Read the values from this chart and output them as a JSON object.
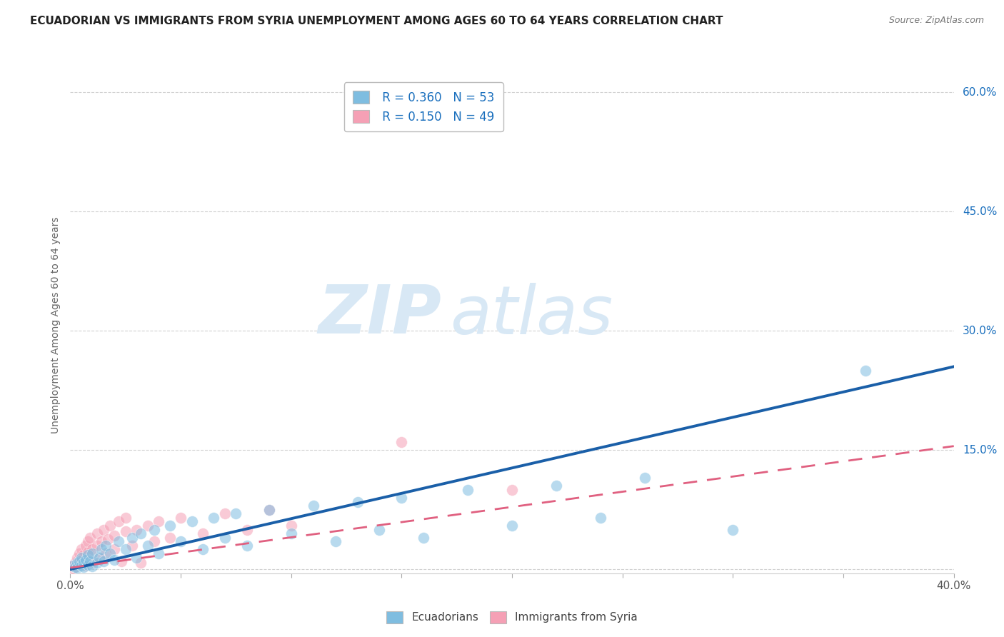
{
  "title": "ECUADORIAN VS IMMIGRANTS FROM SYRIA UNEMPLOYMENT AMONG AGES 60 TO 64 YEARS CORRELATION CHART",
  "source": "Source: ZipAtlas.com",
  "ylabel": "Unemployment Among Ages 60 to 64 years",
  "xlim": [
    0.0,
    0.4
  ],
  "ylim": [
    -0.005,
    0.62
  ],
  "ytick_positions": [
    0.0,
    0.15,
    0.3,
    0.45,
    0.6
  ],
  "yticklabels_right": [
    "",
    "15.0%",
    "30.0%",
    "45.0%",
    "60.0%"
  ],
  "grid_color": "#cccccc",
  "background_color": "#ffffff",
  "watermark_zip": "ZIP",
  "watermark_atlas": "atlas",
  "watermark_color": "#d8e8f5",
  "legend_R1": "R = 0.360",
  "legend_N1": "N = 53",
  "legend_R2": "R = 0.150",
  "legend_N2": "N = 49",
  "blue_color": "#7fbde0",
  "pink_color": "#f5a0b5",
  "blue_line_color": "#1a5fa8",
  "pink_line_color": "#e06080",
  "legend_text_color": "#1a6fbd",
  "blue_scatter": [
    [
      0.001,
      0.005
    ],
    [
      0.002,
      0.003
    ],
    [
      0.003,
      0.008
    ],
    [
      0.003,
      0.002
    ],
    [
      0.004,
      0.01
    ],
    [
      0.005,
      0.005
    ],
    [
      0.005,
      0.015
    ],
    [
      0.006,
      0.003
    ],
    [
      0.006,
      0.008
    ],
    [
      0.007,
      0.012
    ],
    [
      0.008,
      0.006
    ],
    [
      0.008,
      0.018
    ],
    [
      0.009,
      0.01
    ],
    [
      0.01,
      0.004
    ],
    [
      0.01,
      0.02
    ],
    [
      0.012,
      0.008
    ],
    [
      0.013,
      0.015
    ],
    [
      0.014,
      0.025
    ],
    [
      0.015,
      0.01
    ],
    [
      0.016,
      0.03
    ],
    [
      0.018,
      0.02
    ],
    [
      0.02,
      0.012
    ],
    [
      0.022,
      0.035
    ],
    [
      0.025,
      0.025
    ],
    [
      0.028,
      0.04
    ],
    [
      0.03,
      0.015
    ],
    [
      0.032,
      0.045
    ],
    [
      0.035,
      0.03
    ],
    [
      0.038,
      0.05
    ],
    [
      0.04,
      0.02
    ],
    [
      0.045,
      0.055
    ],
    [
      0.05,
      0.035
    ],
    [
      0.055,
      0.06
    ],
    [
      0.06,
      0.025
    ],
    [
      0.065,
      0.065
    ],
    [
      0.07,
      0.04
    ],
    [
      0.075,
      0.07
    ],
    [
      0.08,
      0.03
    ],
    [
      0.09,
      0.075
    ],
    [
      0.1,
      0.045
    ],
    [
      0.11,
      0.08
    ],
    [
      0.12,
      0.035
    ],
    [
      0.13,
      0.085
    ],
    [
      0.14,
      0.05
    ],
    [
      0.15,
      0.09
    ],
    [
      0.16,
      0.04
    ],
    [
      0.18,
      0.1
    ],
    [
      0.2,
      0.055
    ],
    [
      0.22,
      0.105
    ],
    [
      0.24,
      0.065
    ],
    [
      0.26,
      0.115
    ],
    [
      0.3,
      0.05
    ],
    [
      0.36,
      0.25
    ]
  ],
  "pink_scatter": [
    [
      0.001,
      0.001
    ],
    [
      0.001,
      0.005
    ],
    [
      0.002,
      0.008
    ],
    [
      0.002,
      0.003
    ],
    [
      0.003,
      0.01
    ],
    [
      0.003,
      0.015
    ],
    [
      0.004,
      0.006
    ],
    [
      0.004,
      0.02
    ],
    [
      0.005,
      0.012
    ],
    [
      0.005,
      0.025
    ],
    [
      0.006,
      0.008
    ],
    [
      0.006,
      0.018
    ],
    [
      0.007,
      0.03
    ],
    [
      0.007,
      0.005
    ],
    [
      0.008,
      0.022
    ],
    [
      0.008,
      0.035
    ],
    [
      0.009,
      0.012
    ],
    [
      0.009,
      0.04
    ],
    [
      0.01,
      0.025
    ],
    [
      0.01,
      0.008
    ],
    [
      0.012,
      0.03
    ],
    [
      0.012,
      0.045
    ],
    [
      0.013,
      0.015
    ],
    [
      0.014,
      0.035
    ],
    [
      0.015,
      0.05
    ],
    [
      0.016,
      0.02
    ],
    [
      0.017,
      0.038
    ],
    [
      0.018,
      0.055
    ],
    [
      0.02,
      0.025
    ],
    [
      0.02,
      0.042
    ],
    [
      0.022,
      0.06
    ],
    [
      0.023,
      0.01
    ],
    [
      0.025,
      0.048
    ],
    [
      0.025,
      0.065
    ],
    [
      0.028,
      0.03
    ],
    [
      0.03,
      0.05
    ],
    [
      0.032,
      0.008
    ],
    [
      0.035,
      0.055
    ],
    [
      0.038,
      0.035
    ],
    [
      0.04,
      0.06
    ],
    [
      0.045,
      0.04
    ],
    [
      0.05,
      0.065
    ],
    [
      0.06,
      0.045
    ],
    [
      0.07,
      0.07
    ],
    [
      0.08,
      0.05
    ],
    [
      0.09,
      0.075
    ],
    [
      0.1,
      0.055
    ],
    [
      0.15,
      0.16
    ],
    [
      0.2,
      0.1
    ]
  ],
  "blue_line_x": [
    0.0,
    0.4
  ],
  "blue_line_y": [
    0.0,
    0.255
  ],
  "pink_line_x": [
    0.0,
    0.4
  ],
  "pink_line_y": [
    0.002,
    0.155
  ]
}
